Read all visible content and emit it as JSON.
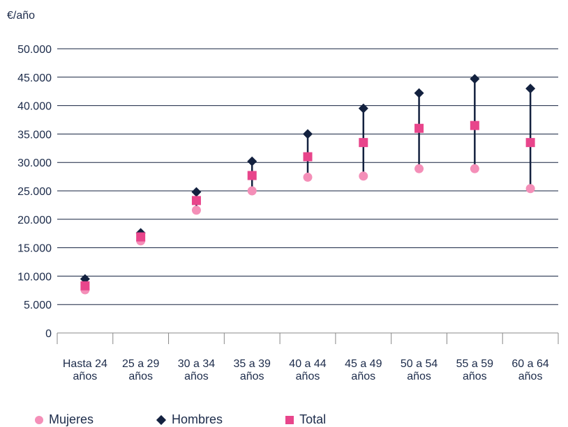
{
  "chart_data": {
    "type": "scatter",
    "unit_label": "€/año",
    "categories": [
      [
        "Hasta 24",
        "años"
      ],
      [
        "25 a 29",
        "años"
      ],
      [
        "30 a 34",
        "años"
      ],
      [
        "35 a 39",
        "años"
      ],
      [
        "40 a 44",
        "años"
      ],
      [
        "45 a 49",
        "años"
      ],
      [
        "50 a 54",
        "años"
      ],
      [
        "55 a 59",
        "años"
      ],
      [
        "60 a 64",
        "años"
      ]
    ],
    "ylim": [
      0,
      50000
    ],
    "yticks": [
      0,
      5000,
      10000,
      15000,
      20000,
      25000,
      30000,
      35000,
      40000,
      45000,
      50000
    ],
    "ytick_labels": [
      "0",
      "5.000",
      "10.000",
      "15.000",
      "20.000",
      "25.000",
      "30.000",
      "35.000",
      "40.000",
      "45.000",
      "50.000"
    ],
    "grid": true,
    "series": [
      {
        "name": "Mujeres",
        "marker": "circle",
        "color": "#f48fb8",
        "values": [
          7600,
          16200,
          21600,
          25000,
          27400,
          27600,
          28900,
          28900,
          25400
        ]
      },
      {
        "name": "Hombres",
        "marker": "diamond",
        "color": "#13213f",
        "values": [
          9500,
          17600,
          24800,
          30200,
          35000,
          39500,
          42200,
          44700,
          43000
        ]
      },
      {
        "name": "Total",
        "marker": "square",
        "color": "#e8458b",
        "values": [
          8300,
          16900,
          23300,
          27700,
          31000,
          33500,
          36000,
          36500,
          33500
        ]
      }
    ],
    "range_line_color": "#13213f",
    "legend_position": "bottom"
  }
}
